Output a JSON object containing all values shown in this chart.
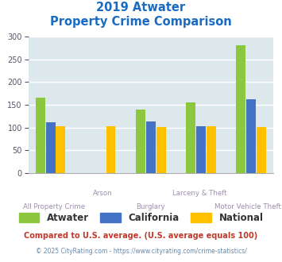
{
  "title_line1": "2019 Atwater",
  "title_line2": "Property Crime Comparison",
  "title_color": "#1a6bc2",
  "categories": [
    "All Property Crime",
    "Arson",
    "Burglary",
    "Larceny & Theft",
    "Motor Vehicle Theft"
  ],
  "series": {
    "Atwater": [
      165,
      0,
      140,
      156,
      281
    ],
    "California": [
      112,
      0,
      113,
      103,
      163
    ],
    "National": [
      102,
      103,
      101,
      102,
      101
    ]
  },
  "colors": {
    "Atwater": "#8dc63f",
    "California": "#4472c4",
    "National": "#ffc000"
  },
  "ylim": [
    0,
    300
  ],
  "yticks": [
    0,
    50,
    100,
    150,
    200,
    250,
    300
  ],
  "plot_bg": "#dde8ed",
  "grid_color": "#ffffff",
  "xlabel_color": "#9b8faa",
  "footer1": "Compared to U.S. average. (U.S. average equals 100)",
  "footer1_color": "#c0392b",
  "footer2": "© 2025 CityRating.com - https://www.cityrating.com/crime-statistics/",
  "footer2_color": "#6688aa",
  "legend_labels": [
    "Atwater",
    "California",
    "National"
  ]
}
